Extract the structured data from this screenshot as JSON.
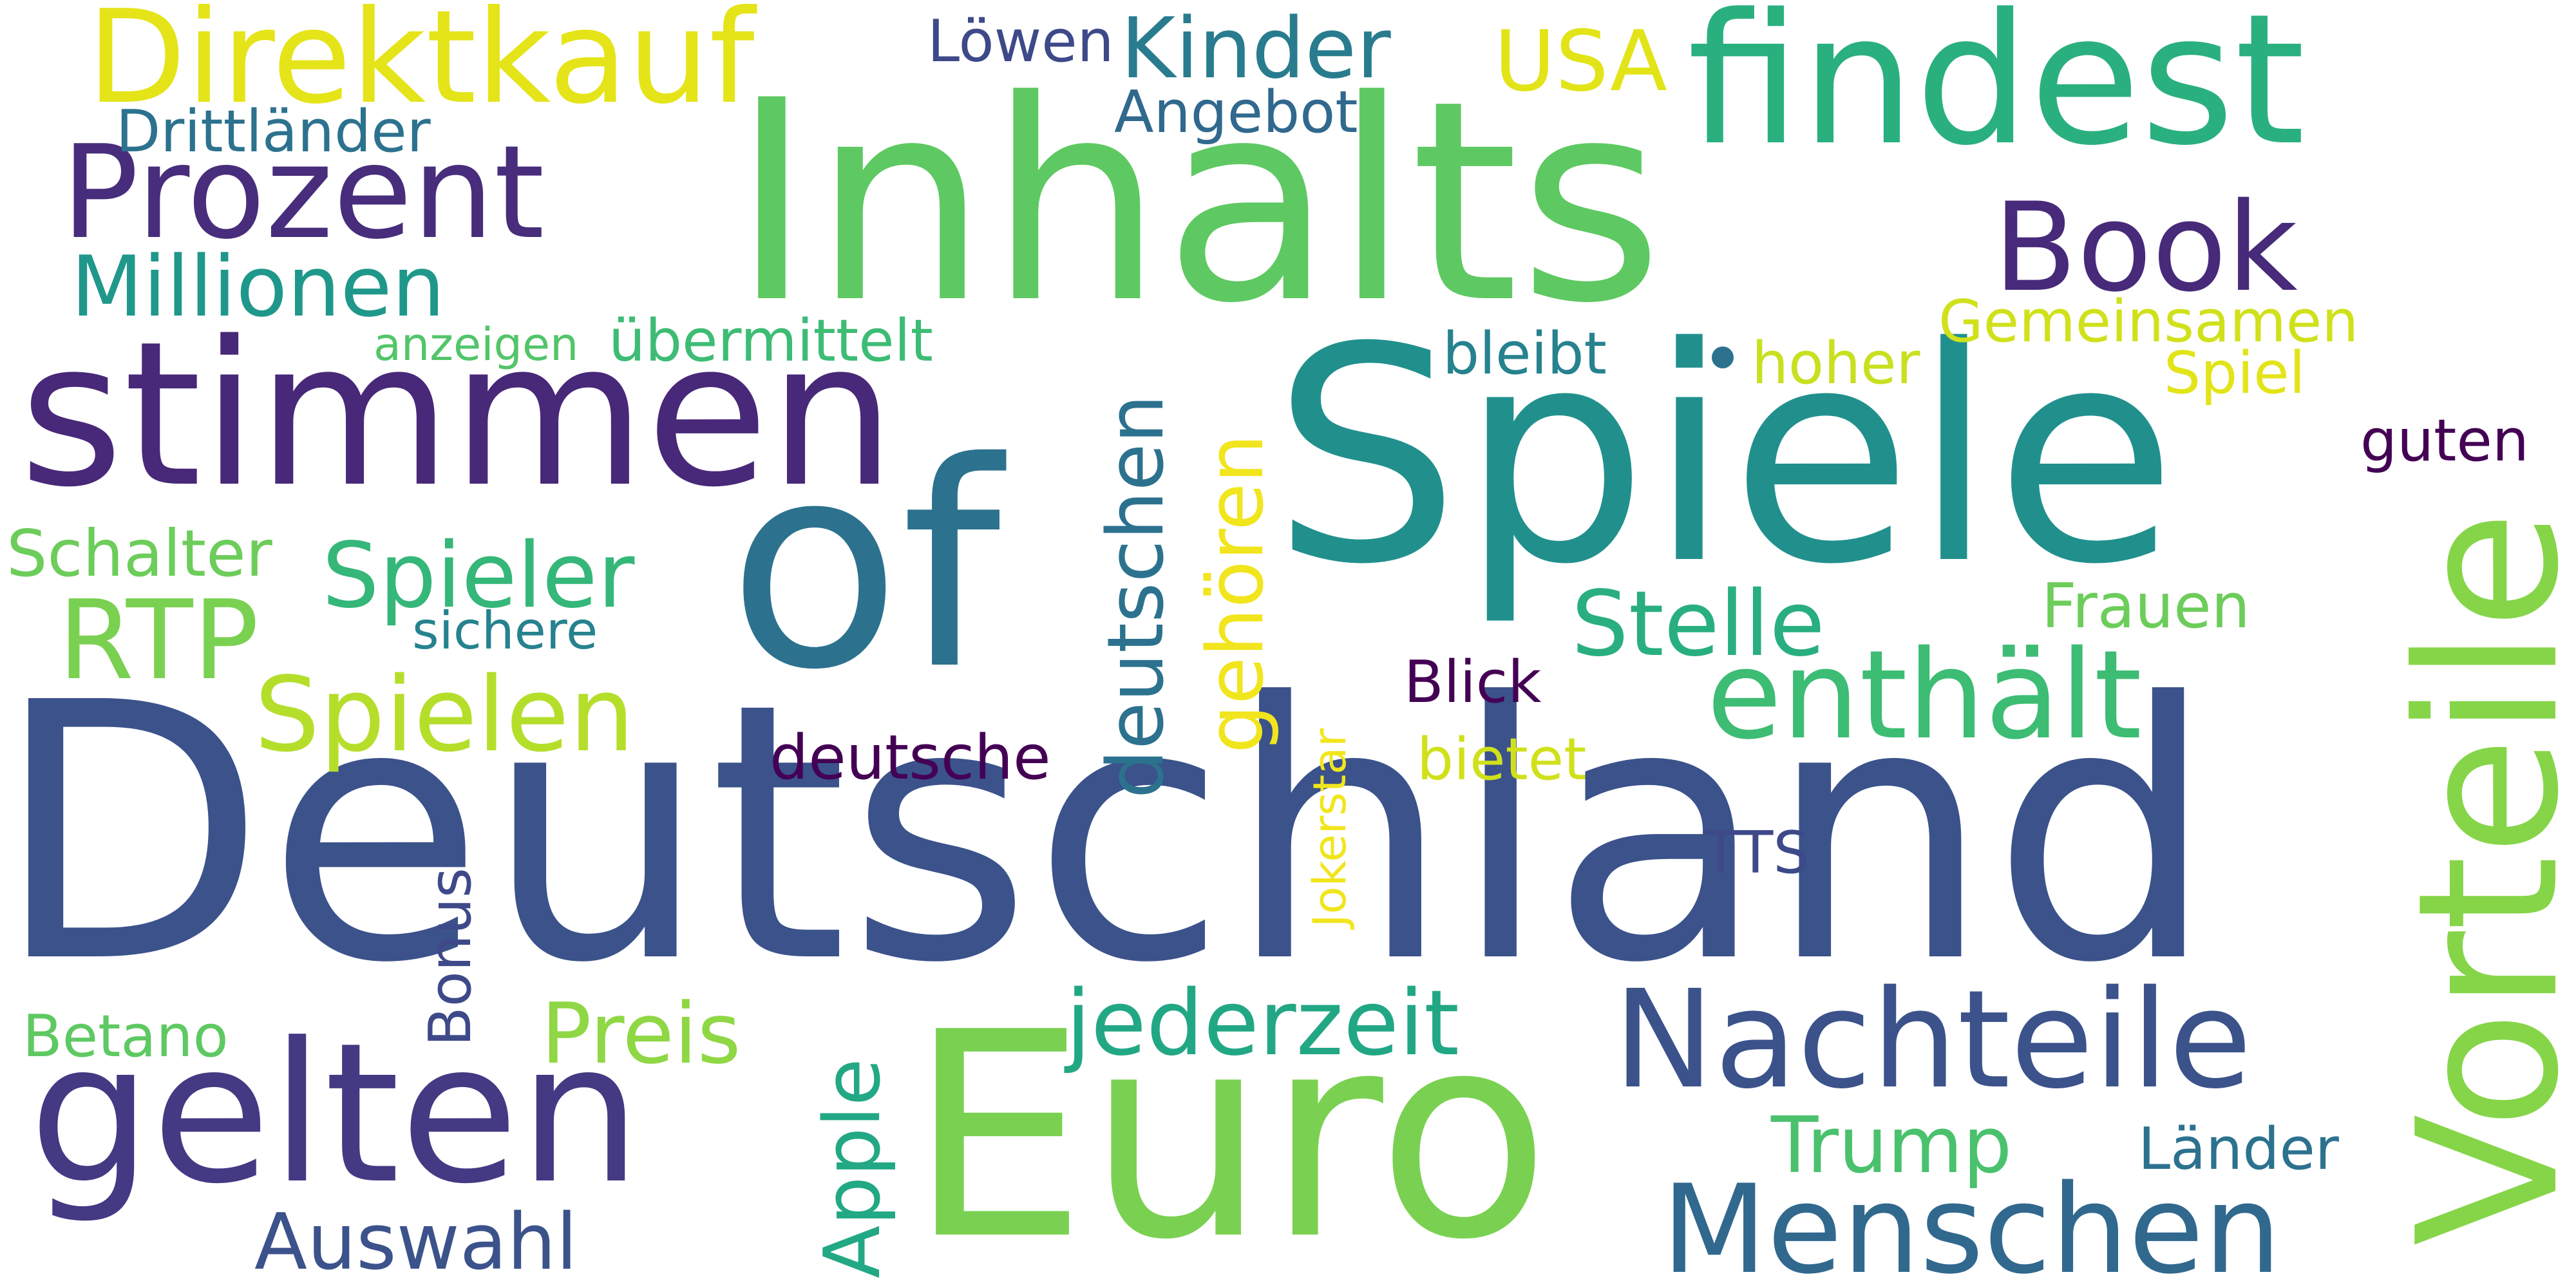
{
  "words": {
    "deutschland": {
      "text": "Deutschland",
      "color": "#3b528b"
    },
    "spiele": {
      "text": "Spiele",
      "color": "#21908d"
    },
    "inhalts": {
      "text": "Inhalts",
      "color": "#5ec962"
    },
    "euro": {
      "text": "Euro",
      "color": "#7ad151"
    },
    "of": {
      "text": "of",
      "color": "#2c728e"
    },
    "stimmen": {
      "text": "stimmen",
      "color": "#482878"
    },
    "vorteile": {
      "text": "Vorteile",
      "color": "#86d549"
    },
    "findest": {
      "text": "findest",
      "color": "#2ab07f"
    },
    "gelten": {
      "text": "gelten",
      "color": "#443983"
    },
    "nachteile": {
      "text": "Nachteile",
      "color": "#3b528b"
    },
    "menschen": {
      "text": "Menschen",
      "color": "#31688e"
    },
    "direktkauf": {
      "text": "Direktkauf",
      "color": "#e5e419"
    },
    "prozent": {
      "text": "Prozent",
      "color": "#472d7b"
    },
    "enthaelt": {
      "text": "enthält",
      "color": "#3dbc74"
    },
    "book": {
      "text": "Book",
      "color": "#472a7a"
    },
    "rtp": {
      "text": "RTP",
      "color": "#7ad151"
    },
    "spielen": {
      "text": "Spielen",
      "color": "#b5de2b"
    },
    "spieler": {
      "text": "Spieler",
      "color": "#35b779"
    },
    "stelle": {
      "text": "Stelle",
      "color": "#29af7f"
    },
    "jederzeit": {
      "text": "jederzeit",
      "color": "#22a785"
    },
    "kinder": {
      "text": "Kinder",
      "color": "#287c8e"
    },
    "millionen": {
      "text": "Millionen",
      "color": "#1f988b"
    },
    "usa": {
      "text": "USA",
      "color": "#e2e418"
    },
    "deutschen": {
      "text": "deutschen",
      "color": "#2c728e"
    },
    "gehoeren": {
      "text": "gehören",
      "color": "#f1e51d"
    },
    "auswahl": {
      "text": "Auswahl",
      "color": "#3b528b"
    },
    "apple": {
      "text": "Apple",
      "color": "#22a884"
    },
    "preis": {
      "text": "Preis",
      "color": "#8fd744"
    },
    "trump": {
      "text": "Trump",
      "color": "#4ac16d"
    },
    "drittlaender": {
      "text": "Drittländer",
      "color": "#2c728e"
    },
    "loewen": {
      "text": "Löwen",
      "color": "#3e4989"
    },
    "angebot": {
      "text": "Angebot",
      "color": "#31688e"
    },
    "uebermittelt": {
      "text": "übermittelt",
      "color": "#3dbc74"
    },
    "anzeigen": {
      "text": "anzeigen",
      "color": "#52c569"
    },
    "schalter": {
      "text": "Schalter",
      "color": "#6ccd5a"
    },
    "sichere": {
      "text": "sichere",
      "color": "#26828e"
    },
    "deutsche": {
      "text": "deutsche",
      "color": "#440154"
    },
    "blick": {
      "text": "Blick",
      "color": "#440154"
    },
    "bietet": {
      "text": "bietet",
      "color": "#d0e11c"
    },
    "jokerstar": {
      "text": "Jokerstar",
      "color": "#f1e51d"
    },
    "tts": {
      "text": "TTS",
      "color": "#3e4989"
    },
    "bonus": {
      "text": "Bonus",
      "color": "#3e4989"
    },
    "betano": {
      "text": "Betano",
      "color": "#5ec962"
    },
    "laender": {
      "text": "Länder",
      "color": "#2c728e"
    },
    "frauen": {
      "text": "Frauen",
      "color": "#6ccd5a"
    },
    "gemeinsamen": {
      "text": "Gemeinsamen",
      "color": "#d0e11c"
    },
    "spiel": {
      "text": "Spiel",
      "color": "#e2e418"
    },
    "guten": {
      "text": "guten",
      "color": "#440154"
    },
    "bleibt": {
      "text": "bleibt",
      "color": "#26828e"
    },
    "hoher": {
      "text": "hoher",
      "color": "#c8e020"
    }
  },
  "dot_color": "#2c728e"
}
